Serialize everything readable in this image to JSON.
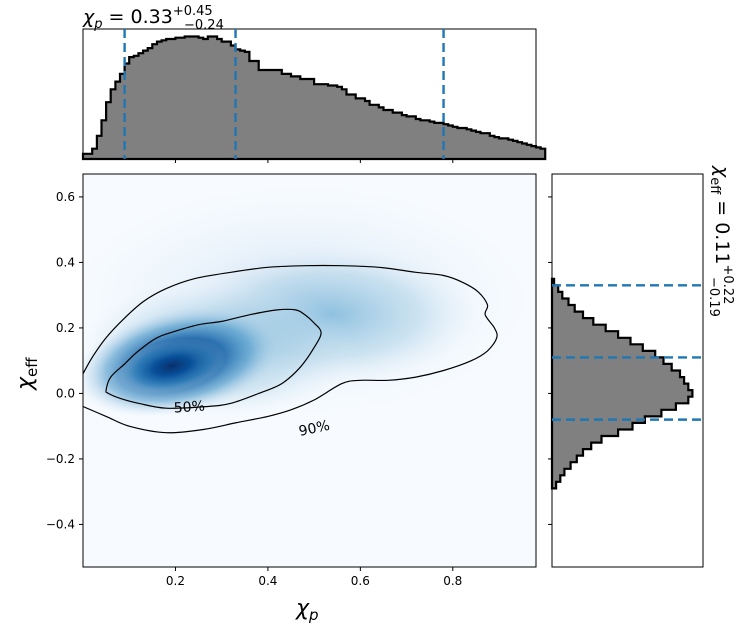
{
  "chart_data": {
    "type": "heatmap",
    "main": {
      "xlabel": "χ",
      "xlabel_sub": "p",
      "ylabel": "χ",
      "ylabel_sub": "eff",
      "xlim": [
        0.0,
        0.98
      ],
      "ylim": [
        -0.53,
        0.67
      ],
      "xticks": [
        0.2,
        0.4,
        0.6,
        0.8
      ],
      "yticks": [
        -0.4,
        -0.2,
        0.0,
        0.2,
        0.4,
        0.6
      ],
      "colormap": "Blues",
      "density_peak": {
        "x": 0.2,
        "y": 0.09
      },
      "contours": [
        {
          "label": "50%",
          "level": 0.5,
          "label_at": {
            "x": 0.23,
            "y": -0.04
          },
          "path": [
            [
              0.05,
              0.01
            ],
            [
              0.06,
              0.05
            ],
            [
              0.09,
              0.09
            ],
            [
              0.12,
              0.13
            ],
            [
              0.16,
              0.17
            ],
            [
              0.2,
              0.19
            ],
            [
              0.25,
              0.21
            ],
            [
              0.3,
              0.22
            ],
            [
              0.36,
              0.24
            ],
            [
              0.42,
              0.255
            ],
            [
              0.46,
              0.255
            ],
            [
              0.48,
              0.24
            ],
            [
              0.5,
              0.215
            ],
            [
              0.515,
              0.185
            ],
            [
              0.5,
              0.14
            ],
            [
              0.47,
              0.08
            ],
            [
              0.43,
              0.03
            ],
            [
              0.38,
              0.0
            ],
            [
              0.32,
              -0.03
            ],
            [
              0.27,
              -0.04
            ],
            [
              0.18,
              -0.045
            ],
            [
              0.12,
              -0.03
            ],
            [
              0.08,
              -0.015
            ],
            [
              0.055,
              0.0
            ]
          ]
        },
        {
          "label": "90%",
          "level": 0.9,
          "label_at": {
            "x": 0.5,
            "y": -0.105
          },
          "path": [
            [
              0.0,
              0.06
            ],
            [
              0.02,
              0.11
            ],
            [
              0.05,
              0.17
            ],
            [
              0.09,
              0.23
            ],
            [
              0.13,
              0.28
            ],
            [
              0.18,
              0.32
            ],
            [
              0.24,
              0.35
            ],
            [
              0.32,
              0.37
            ],
            [
              0.4,
              0.385
            ],
            [
              0.48,
              0.39
            ],
            [
              0.56,
              0.39
            ],
            [
              0.64,
              0.385
            ],
            [
              0.72,
              0.37
            ],
            [
              0.78,
              0.36
            ],
            [
              0.82,
              0.34
            ],
            [
              0.855,
              0.31
            ],
            [
              0.875,
              0.27
            ],
            [
              0.87,
              0.24
            ],
            [
              0.89,
              0.2
            ],
            [
              0.895,
              0.17
            ],
            [
              0.875,
              0.13
            ],
            [
              0.84,
              0.1
            ],
            [
              0.78,
              0.07
            ],
            [
              0.72,
              0.05
            ],
            [
              0.66,
              0.04
            ],
            [
              0.6,
              0.04
            ],
            [
              0.56,
              0.03
            ],
            [
              0.5,
              -0.02
            ],
            [
              0.45,
              -0.05
            ],
            [
              0.4,
              -0.07
            ],
            [
              0.33,
              -0.09
            ],
            [
              0.26,
              -0.11
            ],
            [
              0.18,
              -0.12
            ],
            [
              0.1,
              -0.1
            ],
            [
              0.05,
              -0.07
            ],
            [
              0.0,
              -0.04
            ]
          ]
        }
      ]
    },
    "top_hist": {
      "title_sym": "χ",
      "title_sub": "p",
      "title_text": " = 0.33",
      "title_sup": "+0.45",
      "title_inf": "−0.24",
      "median": 0.33,
      "lower": 0.09,
      "upper": 0.78,
      "bin_start": 0.0,
      "bin_width": 0.01,
      "counts": [
        4,
        4,
        8,
        18,
        30,
        44,
        54,
        60,
        66,
        74,
        79,
        80,
        82,
        84,
        86,
        89,
        91,
        92,
        93,
        93,
        94,
        94,
        95,
        95,
        95,
        94,
        93,
        95,
        95,
        93,
        91,
        91,
        88,
        85,
        84,
        83,
        76,
        76,
        69,
        69,
        69,
        69,
        69,
        66,
        66,
        64,
        64,
        62,
        62,
        62,
        58,
        58,
        58,
        57,
        57,
        56,
        54,
        50,
        50,
        47,
        47,
        45,
        42,
        42,
        40,
        38,
        38,
        36,
        36,
        34,
        33,
        33,
        31,
        30,
        30,
        29,
        28,
        28,
        27,
        26,
        25,
        24,
        24,
        23,
        22,
        21,
        20,
        20,
        18,
        17,
        16,
        16,
        15,
        14,
        13,
        12,
        11,
        10,
        9,
        8
      ],
      "line_color": "#1f77b4",
      "fill_color": "#808080"
    },
    "right_hist": {
      "title_sym": "χ",
      "title_sub": "eff",
      "title_text": " = 0.11",
      "title_sup": "+0.22",
      "title_inf": "−0.19",
      "median": 0.11,
      "lower": -0.08,
      "upper": 0.33,
      "bin_start": -0.29,
      "bin_width": 0.02,
      "counts": [
        2,
        4,
        6,
        9,
        12,
        15,
        19,
        24,
        32,
        39,
        45,
        53,
        60,
        66,
        68,
        66,
        64,
        62,
        58,
        54,
        50,
        44,
        38,
        32,
        26,
        20,
        15,
        11,
        8,
        5,
        3,
        1
      ],
      "line_color": "#1f77b4",
      "fill_color": "#808080"
    }
  }
}
